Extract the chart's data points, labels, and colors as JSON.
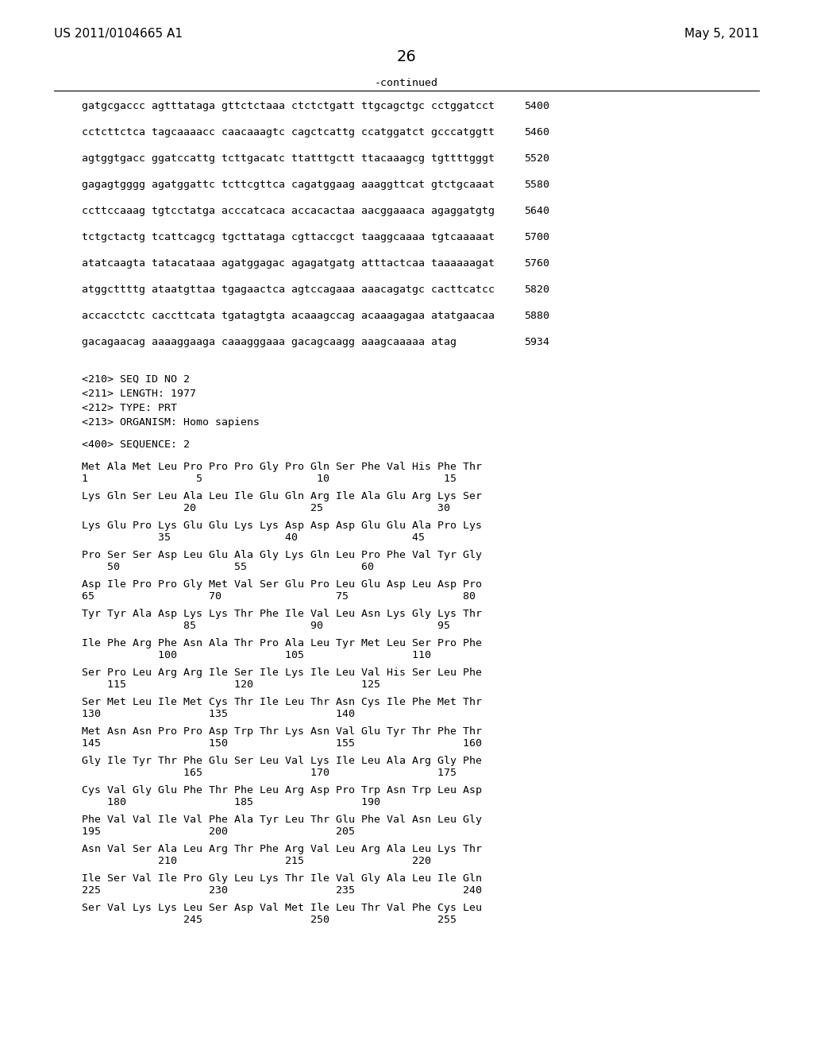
{
  "bg_color": "#ffffff",
  "header_left": "US 2011/0104665 A1",
  "header_right": "May 5, 2011",
  "page_number": "26",
  "continued_label": "-continued",
  "sequence_lines": [
    {
      "text": "gatgcgaccc agtttataga gttctctaaa ctctctgatt ttgcagctgc cctggatcct",
      "num": "5400"
    },
    {
      "text": "cctcttctca tagcaaaacc caacaaagtc cagctcattg ccatggatct gcccatggtt",
      "num": "5460"
    },
    {
      "text": "agtggtgacc ggatccattg tcttgacatc ttatttgctt ttacaaagcg tgttttgggt",
      "num": "5520"
    },
    {
      "text": "gagagtgggg agatggattc tcttcgttca cagatggaag aaaggttcat gtctgcaaat",
      "num": "5580"
    },
    {
      "text": "ccttccaaag tgtcctatga acccatcaca accacactaa aacggaaaca agaggatgtg",
      "num": "5640"
    },
    {
      "text": "tctgctactg tcattcagcg tgcttataga cgttaccgct taaggcaaaa tgtcaaaaat",
      "num": "5700"
    },
    {
      "text": "atatcaagta tatacataaa agatggagac agagatgatg atttactcaa taaaaaagat",
      "num": "5760"
    },
    {
      "text": "atggcttttg ataatgttaa tgagaactca agtccagaaa aaacagatgc cacttcatcc",
      "num": "5820"
    },
    {
      "text": "accacctctc caccttcata tgatagtgta acaaagccag acaaagagaa atatgaacaa",
      "num": "5880"
    },
    {
      "text": "gacagaacag aaaaggaaga caaagggaaa gacagcaagg aaagcaaaaa atag",
      "num": "5934"
    }
  ],
  "meta_lines": [
    "<210> SEQ ID NO 2",
    "<211> LENGTH: 1977",
    "<212> TYPE: PRT",
    "<213> ORGANISM: Homo sapiens"
  ],
  "seq400_label": "<400> SEQUENCE: 2",
  "protein_blocks": [
    {
      "seq": "Met Ala Met Leu Pro Pro Pro Gly Pro Gln Ser Phe Val His Phe Thr",
      "nums": "1                 5                  10                  15"
    },
    {
      "seq": "Lys Gln Ser Leu Ala Leu Ile Glu Gln Arg Ile Ala Glu Arg Lys Ser",
      "nums": "                20                  25                  30"
    },
    {
      "seq": "Lys Glu Pro Lys Glu Glu Lys Lys Asp Asp Asp Glu Glu Ala Pro Lys",
      "nums": "            35                  40                  45"
    },
    {
      "seq": "Pro Ser Ser Asp Leu Glu Ala Gly Lys Gln Leu Pro Phe Val Tyr Gly",
      "nums": "    50                  55                  60"
    },
    {
      "seq": "Asp Ile Pro Pro Gly Met Val Ser Glu Pro Leu Glu Asp Leu Asp Pro",
      "nums": "65                  70                  75                  80"
    },
    {
      "seq": "Tyr Tyr Ala Asp Lys Lys Thr Phe Ile Val Leu Asn Lys Gly Lys Thr",
      "nums": "                85                  90                  95"
    },
    {
      "seq": "Ile Phe Arg Phe Asn Ala Thr Pro Ala Leu Tyr Met Leu Ser Pro Phe",
      "nums": "            100                 105                 110"
    },
    {
      "seq": "Ser Pro Leu Arg Arg Ile Ser Ile Lys Ile Leu Val His Ser Leu Phe",
      "nums": "    115                 120                 125"
    },
    {
      "seq": "Ser Met Leu Ile Met Cys Thr Ile Leu Thr Asn Cys Ile Phe Met Thr",
      "nums": "130                 135                 140"
    },
    {
      "seq": "Met Asn Asn Pro Pro Asp Trp Thr Lys Asn Val Glu Tyr Thr Phe Thr",
      "nums": "145                 150                 155                 160"
    },
    {
      "seq": "Gly Ile Tyr Thr Phe Glu Ser Leu Val Lys Ile Leu Ala Arg Gly Phe",
      "nums": "                165                 170                 175"
    },
    {
      "seq": "Cys Val Gly Glu Phe Thr Phe Leu Arg Asp Pro Trp Asn Trp Leu Asp",
      "nums": "    180                 185                 190"
    },
    {
      "seq": "Phe Val Val Ile Val Phe Ala Tyr Leu Thr Glu Phe Val Asn Leu Gly",
      "nums": "195                 200                 205"
    },
    {
      "seq": "Asn Val Ser Ala Leu Arg Thr Phe Arg Val Leu Arg Ala Leu Lys Thr",
      "nums": "            210                 215                 220"
    },
    {
      "seq": "Ile Ser Val Ile Pro Gly Leu Lys Thr Ile Val Gly Ala Leu Ile Gln",
      "nums": "225                 230                 235                 240"
    },
    {
      "seq": "Ser Val Lys Lys Leu Ser Asp Val Met Ile Leu Thr Val Phe Cys Leu",
      "nums": "                245                 250                 255"
    }
  ]
}
